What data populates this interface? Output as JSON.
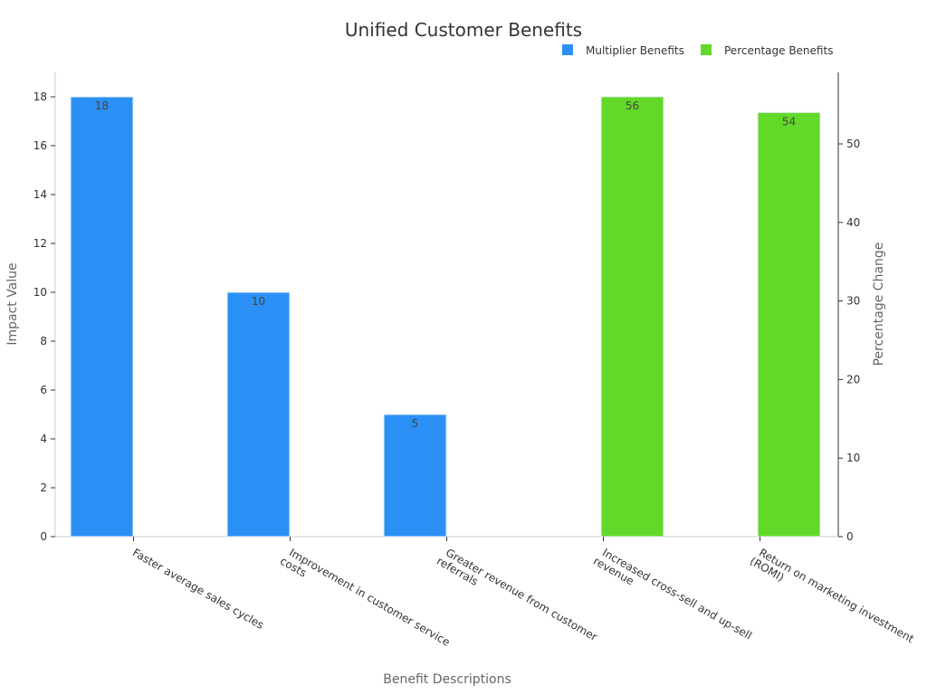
{
  "chart_data": {
    "type": "bar",
    "title": "Unified Customer Benefits",
    "xlabel": "Benefit Descriptions",
    "ylabel_left": "Impact Value",
    "ylabel_right": "Percentage Change",
    "legend_position": "top-right",
    "grid": false,
    "categories": [
      [
        "Faster average sales cycles"
      ],
      [
        "Improvement in customer service",
        "costs"
      ],
      [
        "Greater revenue from customer",
        "referrals"
      ],
      [
        "Increased cross-sell and up-sell",
        "revenue"
      ],
      [
        "Return on marketing investment",
        "(ROMI)"
      ]
    ],
    "series": [
      {
        "name": "Multiplier Benefits",
        "axis": "left",
        "color": "#2b90f5",
        "values": [
          18,
          10,
          5,
          null,
          null
        ]
      },
      {
        "name": "Percentage Benefits",
        "axis": "right",
        "color": "#62d928",
        "values": [
          null,
          null,
          null,
          56,
          54
        ]
      }
    ],
    "ylim_left": [
      0,
      19
    ],
    "yticks_left": [
      0,
      2,
      4,
      6,
      8,
      10,
      12,
      14,
      16,
      18
    ],
    "ylim_right": [
      0,
      59.1
    ],
    "yticks_right": [
      0,
      10,
      20,
      30,
      40,
      50
    ]
  }
}
